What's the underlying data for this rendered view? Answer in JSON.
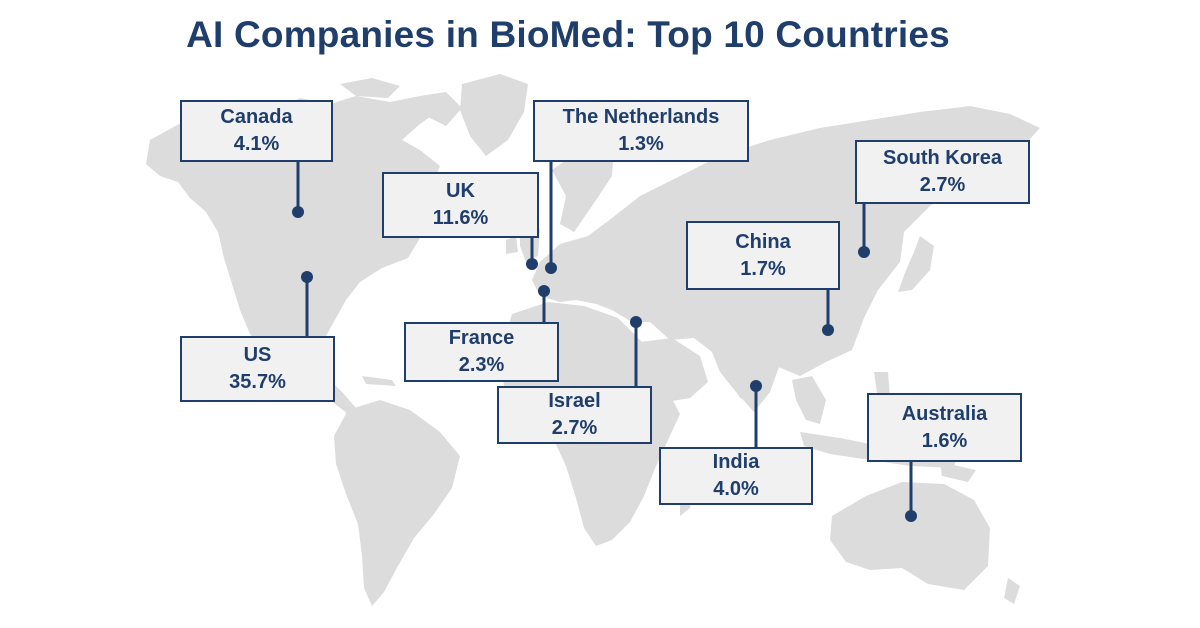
{
  "title": "AI Companies in BioMed: Top 10 Countries",
  "colors": {
    "accent": "#1f3e6b",
    "land": "#dcdcdc",
    "label_bg": "#f1f1f1"
  },
  "countries": [
    {
      "id": "canada",
      "name": "Canada",
      "share": "4.1%"
    },
    {
      "id": "us",
      "name": "US",
      "share": "35.7%"
    },
    {
      "id": "uk",
      "name": "UK",
      "share": "11.6%"
    },
    {
      "id": "netherlands",
      "name": "The Netherlands",
      "share": "1.3%"
    },
    {
      "id": "france",
      "name": "France",
      "share": "2.3%"
    },
    {
      "id": "israel",
      "name": "Israel",
      "share": "2.7%"
    },
    {
      "id": "india",
      "name": "India",
      "share": "4.0%"
    },
    {
      "id": "china",
      "name": "China",
      "share": "1.7%"
    },
    {
      "id": "south-korea",
      "name": "South Korea",
      "share": "2.7%"
    },
    {
      "id": "australia",
      "name": "Australia",
      "share": "1.6%"
    }
  ]
}
